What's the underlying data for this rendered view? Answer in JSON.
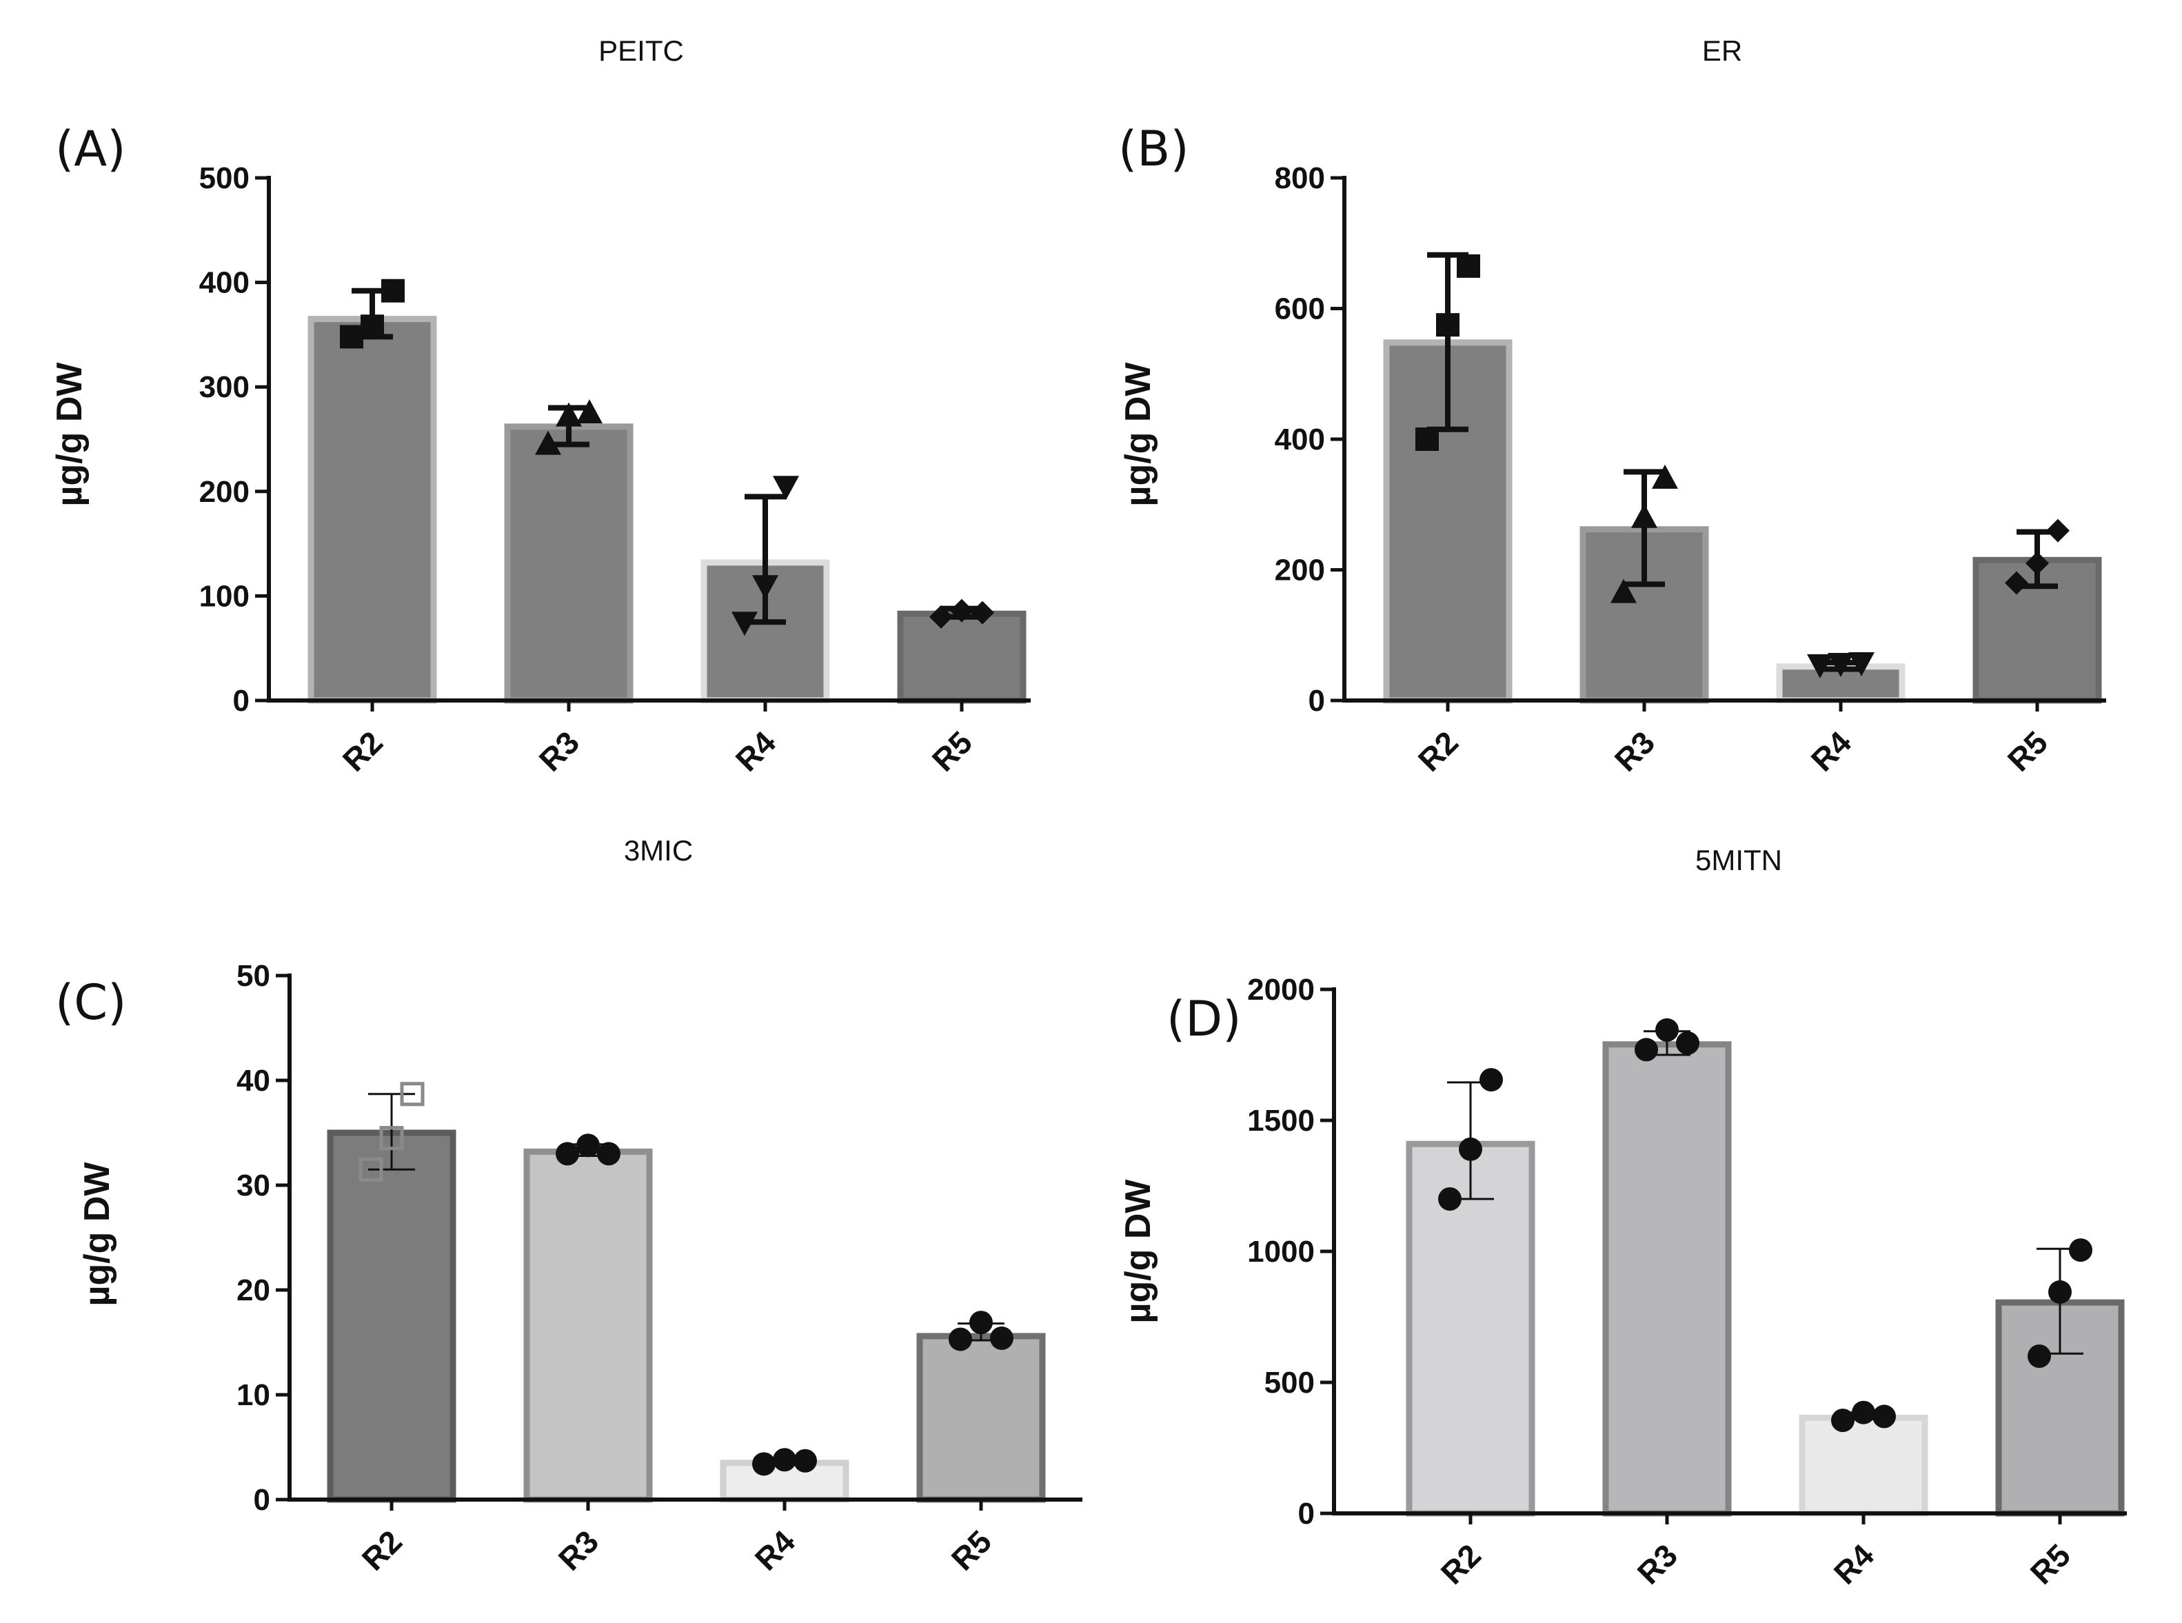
{
  "chart_data": [
    {
      "panel": "(A)",
      "title": "PEITC",
      "type": "bar",
      "ylabel": "µg/g DW",
      "ylim": [
        0,
        500
      ],
      "yticks": [
        0,
        100,
        200,
        300,
        400,
        500
      ],
      "categories": [
        "R2",
        "R3",
        "R4",
        "R5"
      ],
      "values": [
        365,
        262,
        132,
        83
      ],
      "error_low": [
        348,
        245,
        75,
        80
      ],
      "error_high": [
        392,
        280,
        195,
        88
      ],
      "points": [
        [
          348,
          358,
          392
        ],
        [
          245,
          272,
          275
        ],
        [
          75,
          110,
          205
        ],
        [
          80,
          86,
          84
        ]
      ],
      "marker": [
        "square",
        "triangle",
        "triangle-down",
        "diamond"
      ],
      "bar_fill": [
        "#808080",
        "#808080",
        "#808080",
        "#7d7d7d"
      ],
      "bar_stroke": [
        "#b3b3b3",
        "#9a9a9a",
        "#dcdcdc",
        "#6a6a6a"
      ],
      "marker_color": "#111111",
      "error_weight": "thick"
    },
    {
      "panel": "(B)",
      "title": "ER",
      "type": "bar",
      "ylabel": "µg/g DW",
      "ylim": [
        0,
        800
      ],
      "yticks": [
        0,
        200,
        400,
        600,
        800
      ],
      "categories": [
        "R2",
        "R3",
        "R4",
        "R5"
      ],
      "values": [
        548,
        262,
        52,
        215
      ],
      "error_low": [
        415,
        178,
        48,
        175
      ],
      "error_high": [
        682,
        350,
        58,
        258
      ],
      "points": [
        [
          400,
          575,
          665
        ],
        [
          165,
          280,
          340
        ],
        [
          55,
          57,
          58
        ],
        [
          180,
          210,
          260
        ]
      ],
      "marker": [
        "square",
        "triangle",
        "triangle-down",
        "diamond"
      ],
      "bar_fill": [
        "#808080",
        "#808080",
        "#808080",
        "#7d7d7d"
      ],
      "bar_stroke": [
        "#b3b3b3",
        "#9a9a9a",
        "#dcdcdc",
        "#6a6a6a"
      ],
      "marker_color": "#111111",
      "error_weight": "thick"
    },
    {
      "panel": "(C)",
      "title": "3MIC",
      "type": "bar",
      "ylabel": "µg/g DW",
      "ylim": [
        0,
        50
      ],
      "yticks": [
        0,
        10,
        20,
        30,
        40,
        50
      ],
      "categories": [
        "R2",
        "R3",
        "R4",
        "R5"
      ],
      "values": [
        35,
        33.2,
        3.5,
        15.6
      ],
      "error_low": [
        31.5,
        32.8,
        3.3,
        15.2
      ],
      "error_high": [
        38.7,
        33.9,
        3.9,
        16.8
      ],
      "points": [
        [
          31.5,
          34.5,
          38.7
        ],
        [
          33,
          33.8,
          33
        ],
        [
          3.4,
          3.8,
          3.7
        ],
        [
          15.3,
          16.9,
          15.4
        ]
      ],
      "marker": [
        "square-open",
        "circle",
        "circle",
        "circle"
      ],
      "bar_fill": [
        "#7c7c7c",
        "#c4c4c4",
        "#ededed",
        "#b0b0b0"
      ],
      "bar_stroke": [
        "#5c5c5c",
        "#909090",
        "#d0d0d0",
        "#707070"
      ],
      "marker_color": "#111111",
      "error_weight": "thin"
    },
    {
      "panel": "(D)",
      "title": "5MITN",
      "type": "bar",
      "ylabel": "µg/g DW",
      "ylim": [
        0,
        2000
      ],
      "yticks": [
        0,
        500,
        1000,
        1500,
        2000
      ],
      "categories": [
        "R2",
        "R3",
        "R4",
        "R5"
      ],
      "values": [
        1410,
        1790,
        365,
        805
      ],
      "error_low": [
        1200,
        1750,
        360,
        610
      ],
      "error_high": [
        1645,
        1840,
        385,
        1010
      ],
      "points": [
        [
          1200,
          1390,
          1655
        ],
        [
          1770,
          1845,
          1795
        ],
        [
          355,
          385,
          370
        ],
        [
          600,
          845,
          1005
        ]
      ],
      "marker": [
        "circle",
        "circle",
        "circle",
        "circle"
      ],
      "bar_fill": [
        "#d4d4d6",
        "#b7b7b9",
        "#e9e9ea",
        "#b0b0b2"
      ],
      "bar_stroke": [
        "#9a9a9c",
        "#858587",
        "#d6d6d6",
        "#6a6a6a"
      ],
      "marker_color": "#111111",
      "error_weight": "thin"
    }
  ]
}
